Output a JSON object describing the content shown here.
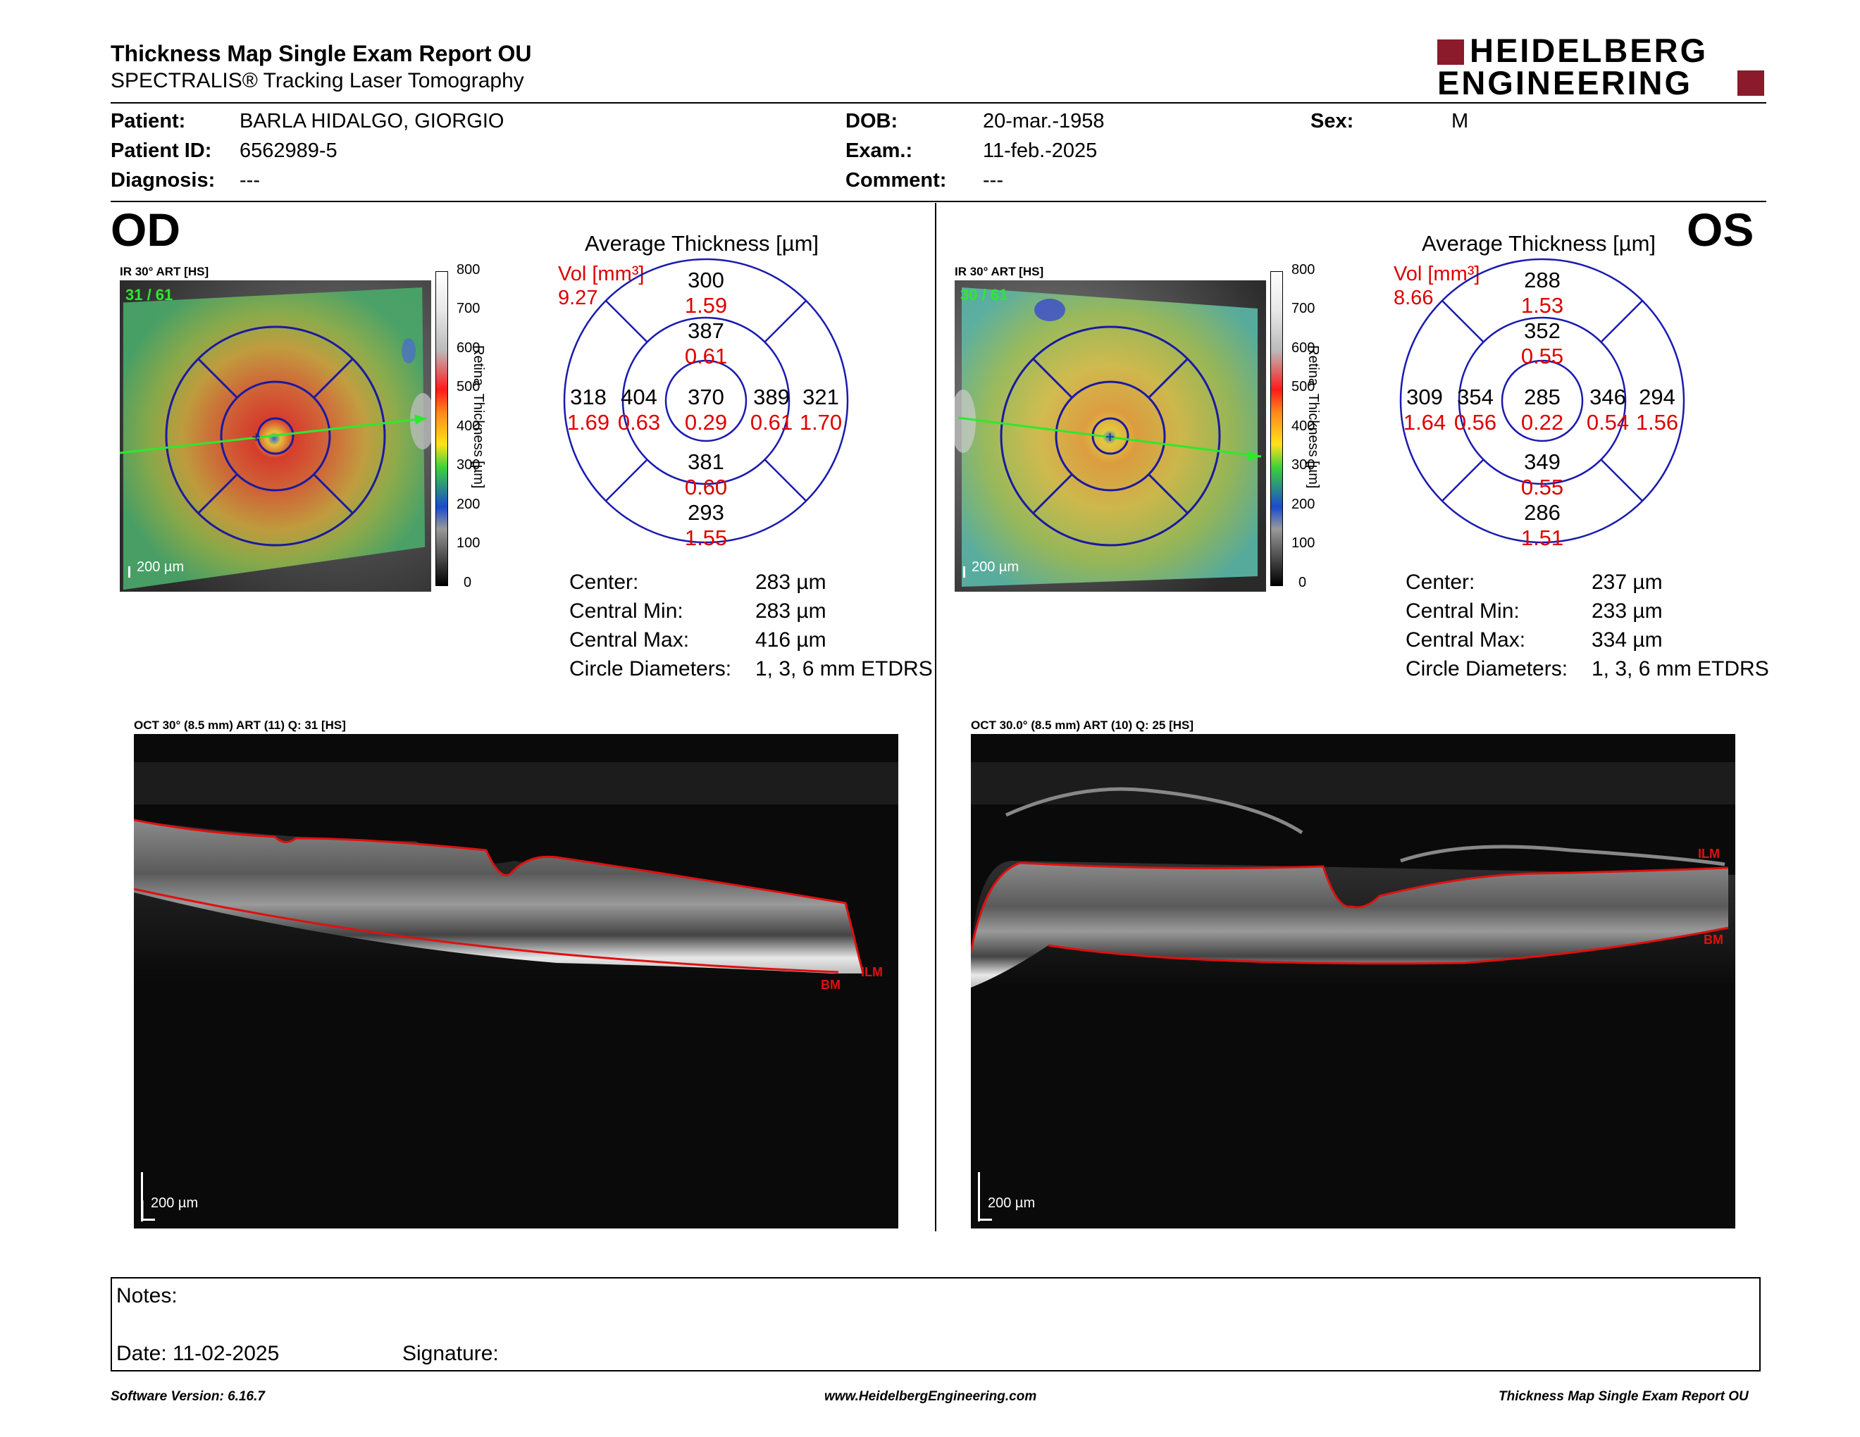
{
  "header": {
    "title": "Thickness Map Single Exam Report OU",
    "subtitle": "SPECTRALIS® Tracking Laser Tomography",
    "logo_line1": "HEIDELBERG",
    "logo_line2": "ENGINEERING",
    "logo_color": "#8b1a2b"
  },
  "patient": {
    "patient_label": "Patient:",
    "patient_value": "BARLA HIDALGO, GIORGIO",
    "patient_id_label": "Patient ID:",
    "patient_id_value": "6562989-5",
    "diagnosis_label": "Diagnosis:",
    "diagnosis_value": "---",
    "dob_label": "DOB:",
    "dob_value": "20-mar.-1958",
    "exam_label": "Exam.:",
    "exam_value": "11-feb.-2025",
    "comment_label": "Comment:",
    "comment_value": "---",
    "sex_label": "Sex:",
    "sex_value": "M"
  },
  "colorbar": {
    "ticks": [
      "800",
      "700",
      "600",
      "500",
      "400",
      "300",
      "200",
      "100",
      "0"
    ],
    "label": "Retina  Thickness [µm]"
  },
  "od": {
    "eye": "OD",
    "fundus_label": "IR 30° ART [HS]",
    "frame_label": "31 / 61",
    "scale_label": "200 µm",
    "avg_title": "Average Thickness [µm]",
    "vol_label": "Vol [mm³]",
    "vol_value": "9.27",
    "sectors": {
      "outer_top": {
        "t": "300",
        "v": "1.59"
      },
      "inner_top": {
        "t": "387",
        "v": "0.61"
      },
      "outer_left": {
        "t": "318",
        "v": "1.69"
      },
      "inner_left": {
        "t": "404",
        "v": "0.63"
      },
      "center": {
        "t": "370",
        "v": "0.29"
      },
      "inner_right": {
        "t": "389",
        "v": "0.61"
      },
      "outer_right": {
        "t": "321",
        "v": "1.70"
      },
      "inner_bottom": {
        "t": "381",
        "v": "0.60"
      },
      "outer_bottom": {
        "t": "293",
        "v": "1.55"
      }
    },
    "stats": {
      "center_label": "Center:",
      "center_value": "283 µm",
      "min_label": "Central Min:",
      "min_value": "283 µm",
      "max_label": "Central Max:",
      "max_value": "416 µm",
      "diam_label": "Circle Diameters:",
      "diam_value": "1, 3, 6 mm ETDRS"
    },
    "oct_label": "OCT 30° (8.5 mm) ART (11) Q: 31 [HS]",
    "oct_scale": "200 µm",
    "ilm": "ILM",
    "bm": "BM"
  },
  "os": {
    "eye": "OS",
    "fundus_label": "IR 30° ART [HS]",
    "frame_label": "30 / 61",
    "scale_label": "200 µm",
    "avg_title": "Average Thickness [µm]",
    "vol_label": "Vol [mm³]",
    "vol_value": "8.66",
    "sectors": {
      "outer_top": {
        "t": "288",
        "v": "1.53"
      },
      "inner_top": {
        "t": "352",
        "v": "0.55"
      },
      "outer_left": {
        "t": "309",
        "v": "1.64"
      },
      "inner_left": {
        "t": "354",
        "v": "0.56"
      },
      "center": {
        "t": "285",
        "v": "0.22"
      },
      "inner_right": {
        "t": "346",
        "v": "0.54"
      },
      "outer_right": {
        "t": "294",
        "v": "1.56"
      },
      "inner_bottom": {
        "t": "349",
        "v": "0.55"
      },
      "outer_bottom": {
        "t": "286",
        "v": "1.51"
      }
    },
    "stats": {
      "center_label": "Center:",
      "center_value": "237 µm",
      "min_label": "Central Min:",
      "min_value": "233 µm",
      "max_label": "Central Max:",
      "max_value": "334 µm",
      "diam_label": "Circle Diameters:",
      "diam_value": "1, 3, 6 mm ETDRS"
    },
    "oct_label": "OCT 30.0° (8.5 mm) ART (10) Q: 25 [HS]",
    "oct_scale": "200 µm",
    "ilm": "ILM",
    "bm": "BM"
  },
  "notes": {
    "notes_label": "Notes:",
    "date_label": "Date: 11-02-2025",
    "signature_label": "Signature:"
  },
  "footer": {
    "software": "Software Version: 6.16.7",
    "website": "www.HeidelbergEngineering.com",
    "report": "Thickness Map Single Exam Report OU"
  }
}
